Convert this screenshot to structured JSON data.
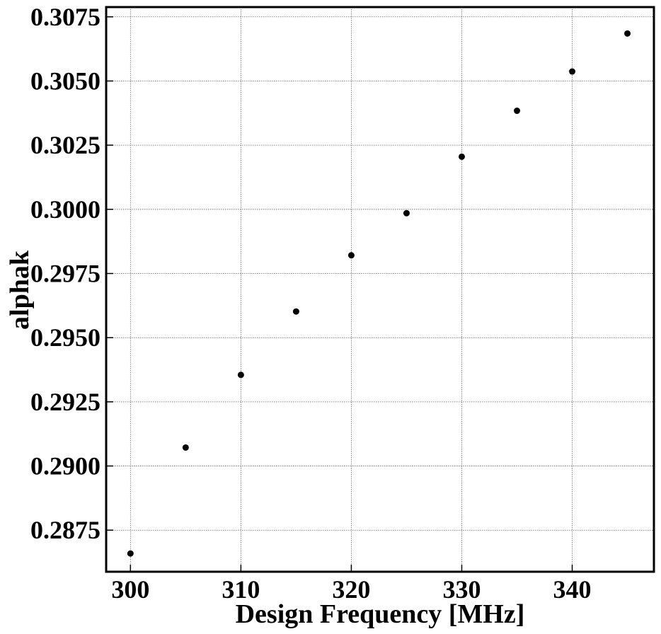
{
  "chart_data": {
    "type": "scatter",
    "title": "",
    "xlabel": "Design Frequency [MHz]",
    "ylabel": "alphak",
    "xlim": [
      297.8,
      347.4
    ],
    "ylim": [
      0.28588,
      0.30788
    ],
    "xticks": [
      300,
      310,
      320,
      330,
      340
    ],
    "xtick_labels": [
      "300",
      "310",
      "320",
      "330",
      "340"
    ],
    "yticks": [
      0.2875,
      0.29,
      0.2925,
      0.295,
      0.2975,
      0.3,
      0.3025,
      0.305,
      0.3075
    ],
    "ytick_labels": [
      "0.2875",
      "0.2900",
      "0.2925",
      "0.2950",
      "0.2975",
      "0.3000",
      "0.3025",
      "0.3050",
      "0.3075"
    ],
    "grid": true,
    "marker_color": "#000000",
    "x": [
      300,
      305,
      310,
      315,
      320,
      325,
      330,
      335,
      340,
      345
    ],
    "y": [
      0.28659,
      0.29072,
      0.29355,
      0.29602,
      0.29821,
      0.29985,
      0.30205,
      0.30384,
      0.30537,
      0.30685
    ]
  }
}
